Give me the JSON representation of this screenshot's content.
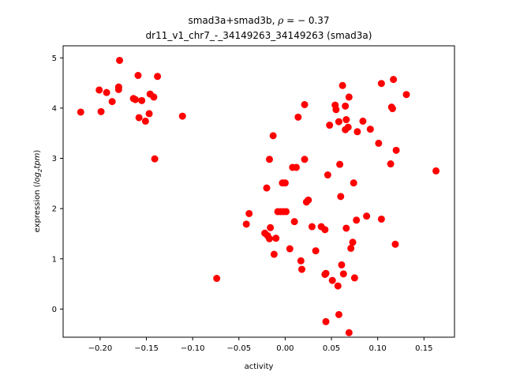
{
  "chart_data": {
    "type": "scatter",
    "title_line1_prefix": "smad3a+smad3b, ",
    "title_line1_rho": "ρ",
    "title_line1_value": " = − 0.37",
    "title_line2": "dr11_v1_chr7_-_34149263_34149263 (smad3a)",
    "xlabel": "activity",
    "ylabel_prefix": "expression (",
    "ylabel_log": "log",
    "ylabel_sub": "2",
    "ylabel_tpm": "tpm",
    "ylabel_suffix": ")",
    "xlim": [
      -0.24,
      0.183
    ],
    "ylim": [
      -0.56,
      5.24
    ],
    "xticks": [
      -0.2,
      -0.15,
      -0.1,
      -0.05,
      0.0,
      0.05,
      0.1,
      0.15
    ],
    "xtick_labels": [
      "−0.20",
      "−0.15",
      "−0.10",
      "−0.05",
      "0.00",
      "0.05",
      "0.10",
      "0.15"
    ],
    "yticks": [
      0,
      1,
      2,
      3,
      4,
      5
    ],
    "ytick_labels": [
      "0",
      "1",
      "2",
      "3",
      "4",
      "5"
    ],
    "marker_color": "#ff0000",
    "grid": false,
    "points": [
      [
        -0.221,
        3.92
      ],
      [
        -0.201,
        4.36
      ],
      [
        -0.199,
        3.93
      ],
      [
        -0.193,
        4.31
      ],
      [
        -0.187,
        4.13
      ],
      [
        -0.18,
        4.42
      ],
      [
        -0.18,
        4.37
      ],
      [
        -0.179,
        4.95
      ],
      [
        -0.164,
        4.19
      ],
      [
        -0.162,
        4.17
      ],
      [
        -0.159,
        4.65
      ],
      [
        -0.158,
        3.81
      ],
      [
        -0.155,
        4.15
      ],
      [
        -0.151,
        3.74
      ],
      [
        -0.147,
        3.89
      ],
      [
        -0.146,
        4.28
      ],
      [
        -0.142,
        4.22
      ],
      [
        -0.138,
        4.63
      ],
      [
        -0.141,
        2.99
      ],
      [
        -0.111,
        3.84
      ],
      [
        -0.074,
        0.61
      ],
      [
        -0.042,
        1.69
      ],
      [
        -0.039,
        1.9
      ],
      [
        -0.022,
        1.51
      ],
      [
        -0.02,
        2.41
      ],
      [
        -0.019,
        1.46
      ],
      [
        -0.017,
        1.4
      ],
      [
        -0.017,
        2.98
      ],
      [
        -0.016,
        1.62
      ],
      [
        -0.013,
        3.45
      ],
      [
        -0.012,
        1.09
      ],
      [
        -0.01,
        1.41
      ],
      [
        -0.008,
        1.94
      ],
      [
        -0.005,
        1.94
      ],
      [
        -0.003,
        2.51
      ],
      [
        -0.002,
        1.94
      ],
      [
        0.0,
        2.51
      ],
      [
        0.001,
        1.94
      ],
      [
        0.005,
        1.2
      ],
      [
        0.008,
        2.82
      ],
      [
        0.01,
        1.74
      ],
      [
        0.012,
        2.82
      ],
      [
        0.014,
        3.82
      ],
      [
        0.017,
        0.96
      ],
      [
        0.018,
        0.79
      ],
      [
        0.021,
        2.98
      ],
      [
        0.021,
        4.07
      ],
      [
        0.023,
        2.13
      ],
      [
        0.025,
        2.17
      ],
      [
        0.029,
        1.64
      ],
      [
        0.033,
        1.16
      ],
      [
        0.039,
        1.64
      ],
      [
        0.043,
        1.58
      ],
      [
        0.043,
        0.69
      ],
      [
        0.044,
        0.71
      ],
      [
        0.044,
        -0.25
      ],
      [
        0.046,
        2.67
      ],
      [
        0.048,
        3.66
      ],
      [
        0.051,
        0.57
      ],
      [
        0.054,
        4.06
      ],
      [
        0.055,
        3.97
      ],
      [
        0.057,
        0.46
      ],
      [
        0.058,
        3.73
      ],
      [
        0.058,
        -0.11
      ],
      [
        0.059,
        2.88
      ],
      [
        0.06,
        2.24
      ],
      [
        0.061,
        0.88
      ],
      [
        0.062,
        4.45
      ],
      [
        0.063,
        0.7
      ],
      [
        0.065,
        3.57
      ],
      [
        0.065,
        4.04
      ],
      [
        0.066,
        3.77
      ],
      [
        0.066,
        1.61
      ],
      [
        0.068,
        3.62
      ],
      [
        0.069,
        4.22
      ],
      [
        0.069,
        -0.47
      ],
      [
        0.071,
        1.21
      ],
      [
        0.073,
        1.33
      ],
      [
        0.074,
        2.51
      ],
      [
        0.075,
        0.62
      ],
      [
        0.077,
        1.77
      ],
      [
        0.078,
        3.53
      ],
      [
        0.084,
        3.74
      ],
      [
        0.088,
        1.85
      ],
      [
        0.092,
        3.58
      ],
      [
        0.101,
        3.3
      ],
      [
        0.104,
        1.79
      ],
      [
        0.104,
        4.49
      ],
      [
        0.114,
        2.89
      ],
      [
        0.115,
        4.02
      ],
      [
        0.116,
        3.99
      ],
      [
        0.117,
        4.57
      ],
      [
        0.119,
        1.29
      ],
      [
        0.12,
        3.16
      ],
      [
        0.131,
        4.27
      ],
      [
        0.163,
        2.75
      ]
    ]
  }
}
